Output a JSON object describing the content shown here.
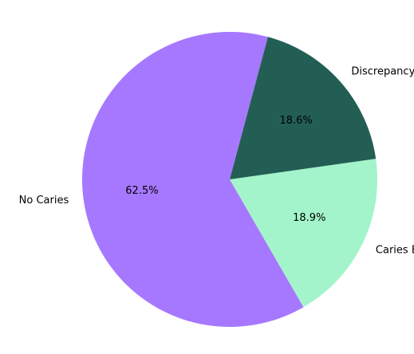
{
  "chart_data": {
    "type": "pie",
    "title": "",
    "slices": [
      {
        "label": "No Caries",
        "value": 62.5,
        "pct_label": "62.5%",
        "color": "#a678ff"
      },
      {
        "label": "Caries Exist",
        "value": 18.9,
        "pct_label": "18.9%",
        "color": "#a3f4cb"
      },
      {
        "label": "Discrepancy",
        "value": 18.6,
        "pct_label": "18.6%",
        "color": "#235e55"
      }
    ],
    "start_angle_deg": 75,
    "direction": "counterclockwise",
    "legend": "none"
  }
}
